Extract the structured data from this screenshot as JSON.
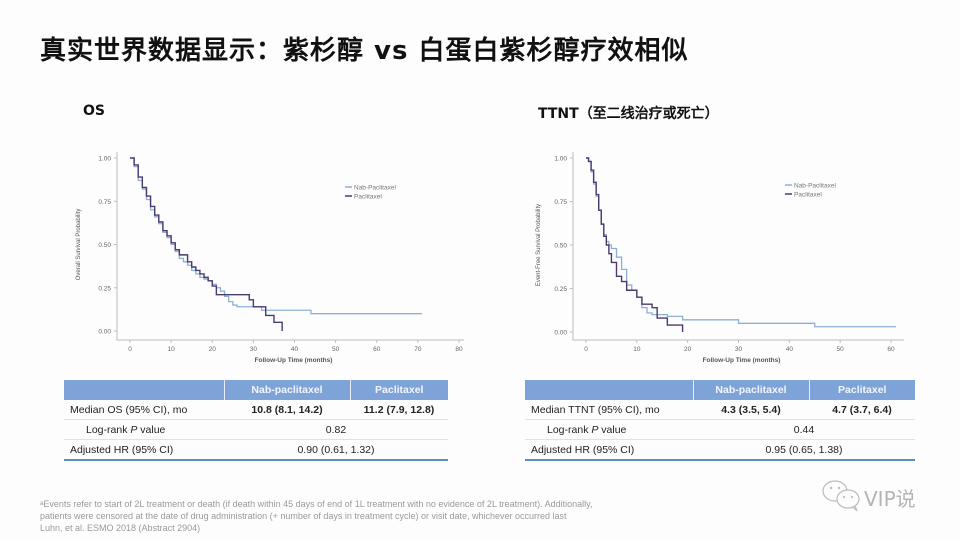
{
  "title": "真实世界数据显示：紫杉醇 vs 白蛋白紫杉醇疗效相似",
  "panels": [
    {
      "subtitle": "OS",
      "table": {
        "headers": [
          "",
          "Nab-paclitaxel",
          "Paclitaxel"
        ],
        "rows": [
          {
            "label": "Median OS (95% CI), mo",
            "nab": "10.8 (8.1, 14.2)",
            "pac": "11.2 (7.9, 12.8)"
          },
          {
            "label_prefix": "Log-rank ",
            "label_italic": "P",
            "label_suffix": " value",
            "merged": "0.82"
          },
          {
            "label": "Adjusted HR (95% CI)",
            "merged": "0.90 (0.61, 1.32)"
          }
        ]
      }
    },
    {
      "subtitle": "TTNT（至二线治疗或死亡）",
      "table": {
        "headers": [
          "",
          "Nab-paclitaxel",
          "Paclitaxel"
        ],
        "rows": [
          {
            "label": "Median TTNT (95% CI), mo",
            "nab": "4.3 (3.5, 5.4)",
            "pac": "4.7 (3.7, 6.4)"
          },
          {
            "label_prefix": "Log-rank ",
            "label_italic": "P",
            "label_suffix": " value",
            "merged": "0.44"
          },
          {
            "label": "Adjusted HR (95% CI)",
            "merged": "0.95 (0.65, 1.38)"
          }
        ]
      }
    }
  ],
  "footnote": [
    "ᵃEvents refer to start of 2L treatment or death (if death within 45 days of end of 1L treatment with no evidence of 2L treatment). Additionally,",
    "patients were censored at the date of drug administration (+ number of days in treatment cycle) or visit date, whichever occurred last",
    "Luhn, et al. ESMO 2018 (Abstract 2904)"
  ],
  "watermark": {
    "icon": "wechat-icon",
    "text": "VIP说"
  },
  "colors": {
    "nab": "#8fb0d6",
    "pac": "#4a3a6e",
    "table_header": "#7ea3d8",
    "table_rule": "#5b8ccc"
  },
  "chart_data": [
    {
      "type": "line",
      "title": "OS",
      "xlabel": "Follow-Up Time (months)",
      "ylabel": "Overall Survival Probability",
      "xlim": [
        0,
        80
      ],
      "ylim": [
        0,
        1
      ],
      "xticks": [
        0,
        10,
        20,
        30,
        40,
        50,
        60,
        70,
        80
      ],
      "yticks": [
        "0.00",
        "0.25",
        "0.50",
        "0.75",
        "1.00"
      ],
      "legend": [
        "Nab-Paclitaxel",
        "Paclitaxel"
      ],
      "legend_position": "upper right",
      "grid": false,
      "curve_points_note": "Step-curve coordinates are estimated by eye from the plot; medians are taken from the table.",
      "series": [
        {
          "name": "Nab-Paclitaxel",
          "x": [
            0,
            1,
            2,
            3,
            4,
            5,
            6,
            7,
            8,
            9,
            10,
            11,
            12,
            13,
            14,
            15,
            16,
            17,
            18,
            19,
            20,
            21,
            22,
            23,
            24,
            25,
            26,
            28,
            30,
            32,
            35,
            40,
            44,
            50,
            60,
            71
          ],
          "y": [
            1.0,
            0.95,
            0.87,
            0.82,
            0.76,
            0.7,
            0.66,
            0.62,
            0.57,
            0.54,
            0.5,
            0.46,
            0.42,
            0.4,
            0.38,
            0.35,
            0.33,
            0.31,
            0.3,
            0.29,
            0.27,
            0.25,
            0.23,
            0.2,
            0.17,
            0.15,
            0.14,
            0.14,
            0.14,
            0.12,
            0.12,
            0.12,
            0.1,
            0.1,
            0.1,
            0.1
          ]
        },
        {
          "name": "Paclitaxel",
          "x": [
            0,
            1,
            2,
            3,
            4,
            5,
            6,
            7,
            8,
            9,
            10,
            11,
            12,
            13,
            14,
            15,
            16,
            17,
            18,
            19,
            20,
            21,
            22,
            25,
            28,
            29,
            30,
            32,
            33,
            35,
            36,
            37
          ],
          "y": [
            1.0,
            0.96,
            0.89,
            0.83,
            0.78,
            0.72,
            0.67,
            0.63,
            0.58,
            0.55,
            0.51,
            0.47,
            0.44,
            0.44,
            0.4,
            0.37,
            0.35,
            0.33,
            0.31,
            0.29,
            0.26,
            0.21,
            0.21,
            0.21,
            0.21,
            0.18,
            0.14,
            0.14,
            0.09,
            0.05,
            0.05,
            0.0
          ]
        }
      ]
    },
    {
      "type": "line",
      "title": "TTNT（至二线治疗或死亡）",
      "xlabel": "Follow-Up Time (months)",
      "ylabel": "Event-Free Survival Probability",
      "xlim": [
        0,
        60
      ],
      "ylim": [
        0,
        1
      ],
      "xticks": [
        0,
        10,
        20,
        30,
        40,
        50,
        60
      ],
      "yticks": [
        "0.00",
        "0.25",
        "0.50",
        "0.75",
        "1.00"
      ],
      "legend": [
        "Nab-Paclitaxel",
        "Paclitaxel"
      ],
      "legend_position": "upper right",
      "grid": false,
      "curve_points_note": "Step-curve coordinates are estimated by eye from the plot; medians are taken from the table.",
      "series": [
        {
          "name": "Nab-Paclitaxel",
          "x": [
            0,
            0.5,
            1,
            1.5,
            2,
            2.5,
            3,
            3.5,
            4,
            4.5,
            5,
            6,
            7,
            8,
            9,
            10,
            11,
            12,
            13,
            14,
            16,
            19,
            25,
            30,
            40,
            45,
            50,
            61
          ],
          "y": [
            1.0,
            0.98,
            0.92,
            0.85,
            0.78,
            0.7,
            0.62,
            0.56,
            0.52,
            0.5,
            0.48,
            0.43,
            0.36,
            0.27,
            0.24,
            0.2,
            0.14,
            0.11,
            0.1,
            0.1,
            0.09,
            0.07,
            0.07,
            0.05,
            0.05,
            0.03,
            0.03,
            0.03
          ]
        },
        {
          "name": "Paclitaxel",
          "x": [
            0,
            0.5,
            1,
            1.5,
            2,
            2.5,
            3,
            3.5,
            4,
            4.5,
            5,
            6,
            7,
            8,
            9,
            10,
            11,
            12,
            13,
            14,
            15,
            16,
            19
          ],
          "y": [
            1.0,
            0.98,
            0.93,
            0.86,
            0.79,
            0.7,
            0.62,
            0.55,
            0.5,
            0.45,
            0.4,
            0.32,
            0.29,
            0.24,
            0.24,
            0.2,
            0.16,
            0.16,
            0.14,
            0.08,
            0.08,
            0.04,
            0.0
          ]
        }
      ]
    }
  ]
}
